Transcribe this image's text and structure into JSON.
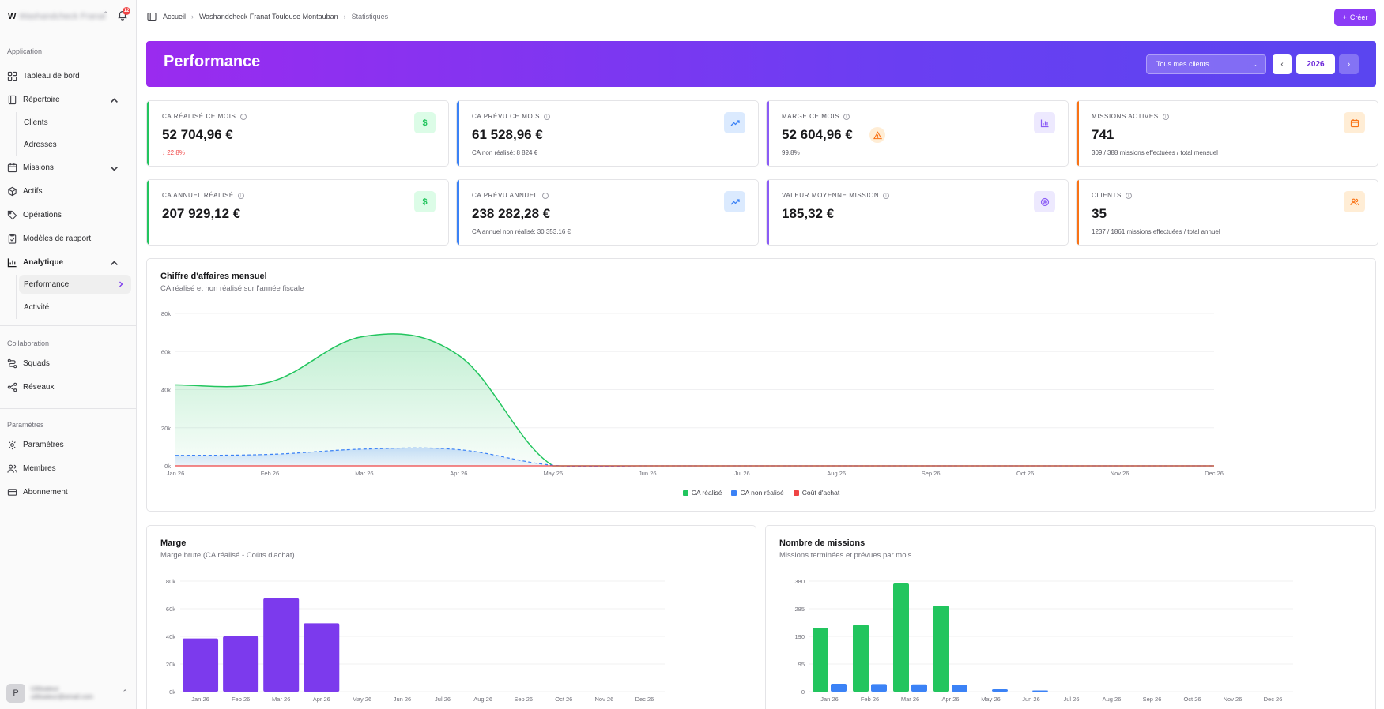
{
  "sidebar": {
    "workspace_letter": "W",
    "workspace_name": "Washandcheck Franat",
    "notification_count": "12",
    "sections": {
      "application": "Application",
      "collaboration": "Collaboration",
      "parametres": "Paramètres"
    },
    "items": {
      "dashboard": "Tableau de bord",
      "repertoire": "Répertoire",
      "clients": "Clients",
      "adresses": "Adresses",
      "missions": "Missions",
      "actifs": "Actifs",
      "operations": "Opérations",
      "modeles": "Modèles de rapport",
      "analytique": "Analytique",
      "performance": "Performance",
      "activite": "Activité",
      "squads": "Squads",
      "reseaux": "Réseaux",
      "parametres": "Paramètres",
      "membres": "Membres",
      "abonnement": "Abonnement"
    },
    "user": {
      "initial": "P",
      "name": "Utilisateur",
      "email": "utilisateur@email.com"
    }
  },
  "header": {
    "breadcrumb": [
      "Accueil",
      "Washandcheck Franat Toulouse Montauban",
      "Statistiques"
    ],
    "create_label": "Créer"
  },
  "banner": {
    "title": "Performance",
    "client_filter": "Tous mes clients",
    "year": "2026",
    "prev": "‹",
    "next": "›"
  },
  "cards": [
    {
      "label": "CA réalisé ce mois",
      "value": "52 704,96 €",
      "sub": "↓ 22.8%",
      "color": "#22c55e",
      "icon": "dollar-icon"
    },
    {
      "label": "CA prévu ce mois",
      "value": "61 528,96 €",
      "sub": "CA non réalisé: 8 824 €",
      "color": "#3b82f6",
      "icon": "trend-up-icon"
    },
    {
      "label": "Marge ce mois",
      "value": "52 604,96 €",
      "sub": "99.8%",
      "color": "#8b5cf6",
      "icon": "bar-chart-icon"
    },
    {
      "label": "Missions actives",
      "value": "741",
      "sub": "309 / 388 missions effectuées / total mensuel",
      "color": "#f97316",
      "icon": "calendar-icon"
    },
    {
      "label": "CA annuel réalisé",
      "value": "207 929,12 €",
      "sub": "",
      "color": "#22c55e",
      "icon": "dollar-icon"
    },
    {
      "label": "CA prévu annuel",
      "value": "238 282,28 €",
      "sub": "CA annuel non réalisé: 30 353,16 €",
      "color": "#3b82f6",
      "icon": "trend-up-icon"
    },
    {
      "label": "Valeur moyenne mission",
      "value": "185,32 €",
      "sub": "",
      "color": "#8b5cf6",
      "icon": "target-icon"
    },
    {
      "label": "Clients",
      "value": "35",
      "sub": "1237 / 1861 missions effectuées / total annuel",
      "color": "#f97316",
      "icon": "users-icon"
    }
  ],
  "chart_data": [
    {
      "type": "area",
      "title": "Chiffre d'affaires mensuel",
      "subtitle": "CA réalisé et non réalisé sur l'année fiscale",
      "categories": [
        "Jan 26",
        "Feb 26",
        "Mar 26",
        "Apr 26",
        "May 26",
        "Jun 26",
        "Jul 26",
        "Aug 26",
        "Sep 26",
        "Oct 26",
        "Nov 26",
        "Dec 26"
      ],
      "ylim": [
        0,
        80000
      ],
      "yticks": [
        "0k",
        "20k",
        "40k",
        "60k",
        "80k"
      ],
      "series": [
        {
          "name": "CA réalisé",
          "color": "#22c55e",
          "values": [
            42500,
            44000,
            68000,
            58000,
            0,
            0,
            0,
            0,
            0,
            0,
            0,
            0
          ]
        },
        {
          "name": "CA non réalisé",
          "color": "#3b82f6",
          "values": [
            5500,
            6000,
            8800,
            8500,
            300,
            0,
            0,
            0,
            0,
            0,
            0,
            0
          ]
        },
        {
          "name": "Coût d'achat",
          "color": "#ef4444",
          "values": [
            0,
            0,
            0,
            0,
            0,
            0,
            0,
            0,
            0,
            0,
            0,
            0
          ]
        }
      ],
      "legend": "bottom"
    },
    {
      "type": "bar",
      "title": "Marge",
      "subtitle": "Marge brute (CA réalisé - Coûts d'achat)",
      "categories": [
        "Jan 26",
        "Feb 26",
        "Mar 26",
        "Apr 26",
        "May 26",
        "Jun 26",
        "Jul 26",
        "Aug 26",
        "Sep 26",
        "Oct 26",
        "Nov 26",
        "Dec 26"
      ],
      "ylim": [
        0,
        80000
      ],
      "yticks": [
        "0k",
        "20k",
        "40k",
        "60k",
        "80k"
      ],
      "series": [
        {
          "color": "#7c3aed",
          "values": [
            38500,
            40000,
            67500,
            49500,
            0,
            0,
            0,
            0,
            0,
            0,
            0,
            0
          ]
        }
      ]
    },
    {
      "type": "bar",
      "title": "Nombre de missions",
      "subtitle": "Missions terminées et prévues par mois",
      "categories": [
        "Jan 26",
        "Feb 26",
        "Mar 26",
        "Apr 26",
        "May 26",
        "Jun 26",
        "Jul 26",
        "Aug 26",
        "Sep 26",
        "Oct 26",
        "Nov 26",
        "Dec 26"
      ],
      "ylim": [
        0,
        380
      ],
      "yticks": [
        "0",
        "95",
        "190",
        "285",
        "380"
      ],
      "series": [
        {
          "color": "#22c55e",
          "values": [
            220,
            230,
            372,
            296,
            0,
            0,
            0,
            0,
            0,
            0,
            0,
            0
          ]
        },
        {
          "color": "#3b82f6",
          "values": [
            27,
            26,
            25,
            24,
            8,
            4,
            0,
            0,
            0,
            0,
            0,
            0
          ]
        }
      ]
    }
  ]
}
